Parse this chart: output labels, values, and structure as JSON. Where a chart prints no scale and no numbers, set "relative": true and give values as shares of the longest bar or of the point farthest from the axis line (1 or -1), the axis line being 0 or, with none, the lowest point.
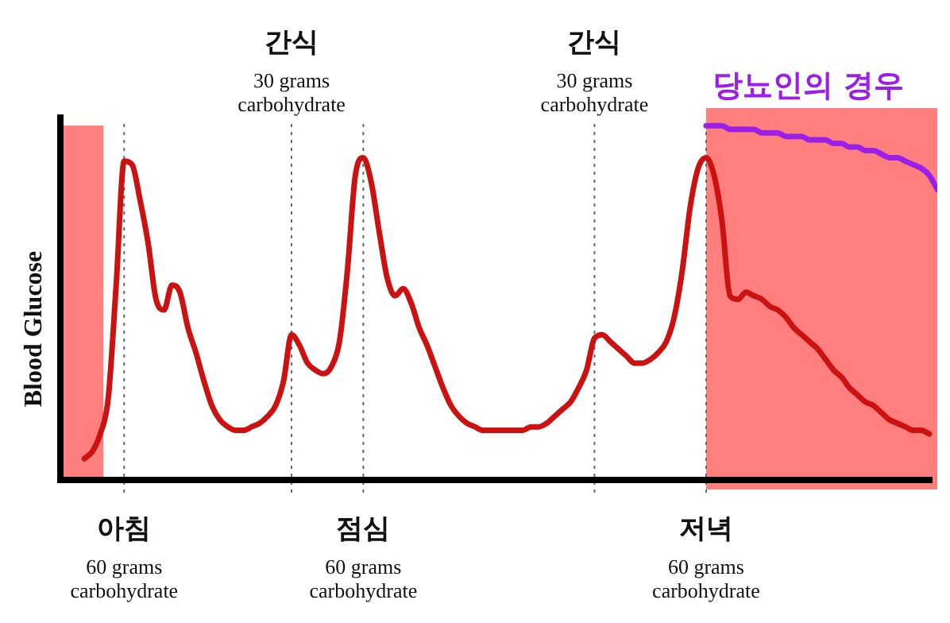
{
  "chart_data": {
    "type": "line",
    "relative": true,
    "ylabel": "Blood Glucose",
    "categories": [
      null,
      null,
      null,
      null,
      null,
      null,
      null,
      null,
      "아침\n60 grams\ncarbohydrate",
      null,
      null,
      null,
      null,
      null,
      null,
      null,
      null,
      null,
      null,
      null,
      null,
      null,
      null,
      null,
      null,
      null,
      null,
      null,
      null,
      null,
      null,
      null,
      null,
      null,
      null,
      null,
      null,
      null,
      "점심\n60 grams\ncarbohydrate",
      null,
      null,
      null,
      null,
      null,
      null,
      null,
      null,
      null,
      null,
      null,
      null,
      null,
      null,
      null,
      null,
      null,
      null,
      null,
      null,
      null,
      null,
      null,
      null,
      null,
      null,
      null,
      null,
      null,
      null,
      null,
      null,
      null,
      null,
      null,
      null,
      null,
      null,
      null,
      null,
      null,
      null,
      "저녁\n60 grams\ncarbohydrate",
      null,
      null,
      null,
      null,
      null,
      null,
      null,
      null,
      null,
      null,
      null,
      null,
      null,
      null,
      null,
      null,
      null,
      null,
      null,
      null,
      null,
      null,
      null,
      null,
      null,
      null,
      null,
      null,
      null
    ],
    "series": [
      {
        "color": "#cc1111",
        "values": [
          null,
          null,
          null,
          0.06,
          0.08,
          0.13,
          0.23,
          0.55,
          0.9,
          0.89,
          0.79,
          0.67,
          0.51,
          0.48,
          0.55,
          0.53,
          0.43,
          0.36,
          0.28,
          0.21,
          0.17,
          0.15,
          0.14,
          0.14,
          0.15,
          0.16,
          0.18,
          0.21,
          0.28,
          0.41,
          0.38,
          0.33,
          0.31,
          0.3,
          0.32,
          0.39,
          0.59,
          0.86,
          0.91,
          0.84,
          0.7,
          0.57,
          0.52,
          0.54,
          0.5,
          0.43,
          0.38,
          0.32,
          0.26,
          0.21,
          0.18,
          0.16,
          0.15,
          0.14,
          0.14,
          0.14,
          0.14,
          0.14,
          0.14,
          0.15,
          0.15,
          0.16,
          0.18,
          0.2,
          0.22,
          0.26,
          0.31,
          0.4,
          0.41,
          0.39,
          0.37,
          0.35,
          0.33,
          0.33,
          0.34,
          0.36,
          0.39,
          0.46,
          0.59,
          0.77,
          0.88,
          0.91,
          0.86,
          0.73,
          0.52,
          0.51,
          0.53,
          0.52,
          0.51,
          0.49,
          0.48,
          0.46,
          0.43,
          0.41,
          0.39,
          0.37,
          0.34,
          0.31,
          0.29,
          0.26,
          0.24,
          0.22,
          0.21,
          0.19,
          0.17,
          0.16,
          0.15,
          0.14,
          0.14,
          0.13,
          null
        ]
      },
      {
        "name": "당뇨인의 경우",
        "color": "#9b1fe8",
        "values": [
          null,
          null,
          null,
          null,
          null,
          null,
          null,
          null,
          null,
          null,
          null,
          null,
          null,
          null,
          null,
          null,
          null,
          null,
          null,
          null,
          null,
          null,
          null,
          null,
          null,
          null,
          null,
          null,
          null,
          null,
          null,
          null,
          null,
          null,
          null,
          null,
          null,
          null,
          null,
          null,
          null,
          null,
          null,
          null,
          null,
          null,
          null,
          null,
          null,
          null,
          null,
          null,
          null,
          null,
          null,
          null,
          null,
          null,
          null,
          null,
          null,
          null,
          null,
          null,
          null,
          null,
          null,
          null,
          null,
          null,
          null,
          null,
          null,
          null,
          null,
          null,
          null,
          null,
          null,
          null,
          null,
          1.0,
          1.0,
          1.0,
          0.99,
          0.99,
          0.99,
          0.99,
          0.98,
          0.98,
          0.98,
          0.97,
          0.97,
          0.97,
          0.96,
          0.96,
          0.96,
          0.95,
          0.95,
          0.94,
          0.94,
          0.93,
          0.93,
          0.92,
          0.91,
          0.91,
          0.9,
          0.89,
          0.88,
          0.86,
          0.82
        ]
      }
    ],
    "annotations": [
      "간식\n30 grams\ncarbohydrate",
      "간식\n30 grams\ncarbohydrate"
    ],
    "legend": false,
    "grid": "x"
  }
}
